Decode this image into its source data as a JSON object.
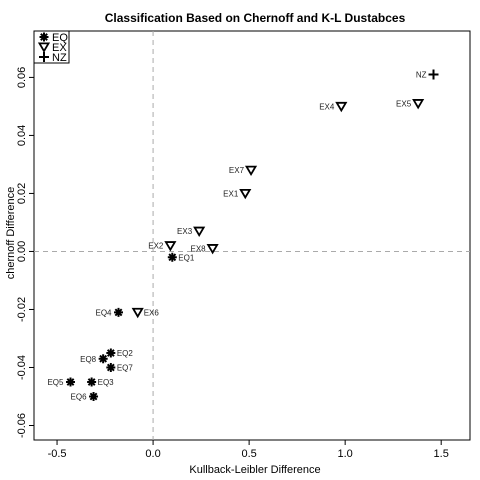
{
  "chart_data": {
    "type": "scatter",
    "title": "Classification Based on Chernoff and K-L Dustabces",
    "xlabel": "Kullback-Leibler Difference",
    "ylabel": "chernoff Difference",
    "xlim": [
      -0.62,
      1.65
    ],
    "ylim": [
      -0.065,
      0.076
    ],
    "xticks": [
      -0.5,
      0.0,
      0.5,
      1.0,
      1.5
    ],
    "xtick_labels": [
      "-0.5",
      "0.0",
      "0.5",
      "1.0",
      "1.5"
    ],
    "yticks": [
      -0.06,
      -0.04,
      -0.02,
      0.0,
      0.02,
      0.04,
      0.06
    ],
    "ytick_labels": [
      "-0.06",
      "-0.04",
      "-0.02",
      "0.00",
      "0.02",
      "0.04",
      "0.06"
    ],
    "reference_lines": {
      "x": 0,
      "y": 0,
      "style": "dashed",
      "color": "#aaaaaa"
    },
    "legend": {
      "placement": "top-left",
      "entries": [
        {
          "label": "EQ",
          "marker": "asterisk"
        },
        {
          "label": "EX",
          "marker": "triangle-down"
        },
        {
          "label": "NZ",
          "marker": "plus"
        }
      ]
    },
    "series": [
      {
        "name": "EQ",
        "marker": "asterisk",
        "points": [
          {
            "label": "EQ1",
            "x": 0.1,
            "y": -0.002
          },
          {
            "label": "EQ2",
            "x": -0.22,
            "y": -0.035
          },
          {
            "label": "EQ3",
            "x": -0.32,
            "y": -0.045
          },
          {
            "label": "EQ4",
            "x": -0.18,
            "y": -0.021
          },
          {
            "label": "EQ5",
            "x": -0.43,
            "y": -0.045
          },
          {
            "label": "EQ6",
            "x": -0.31,
            "y": -0.05
          },
          {
            "label": "EQ7",
            "x": -0.22,
            "y": -0.04
          },
          {
            "label": "EQ8",
            "x": -0.26,
            "y": -0.037
          }
        ]
      },
      {
        "name": "EX",
        "marker": "triangle-down",
        "points": [
          {
            "label": "EX1",
            "x": 0.48,
            "y": 0.02
          },
          {
            "label": "EX2",
            "x": 0.09,
            "y": 0.002
          },
          {
            "label": "EX3",
            "x": 0.24,
            "y": 0.007
          },
          {
            "label": "EX4",
            "x": 0.98,
            "y": 0.05
          },
          {
            "label": "EX5",
            "x": 1.38,
            "y": 0.051
          },
          {
            "label": "EX6",
            "x": -0.08,
            "y": -0.021
          },
          {
            "label": "EX7",
            "x": 0.51,
            "y": 0.028
          },
          {
            "label": "EX8",
            "x": 0.31,
            "y": 0.001
          }
        ]
      },
      {
        "name": "NZ",
        "marker": "plus",
        "points": [
          {
            "label": "NZ",
            "x": 1.46,
            "y": 0.061
          }
        ]
      }
    ]
  }
}
